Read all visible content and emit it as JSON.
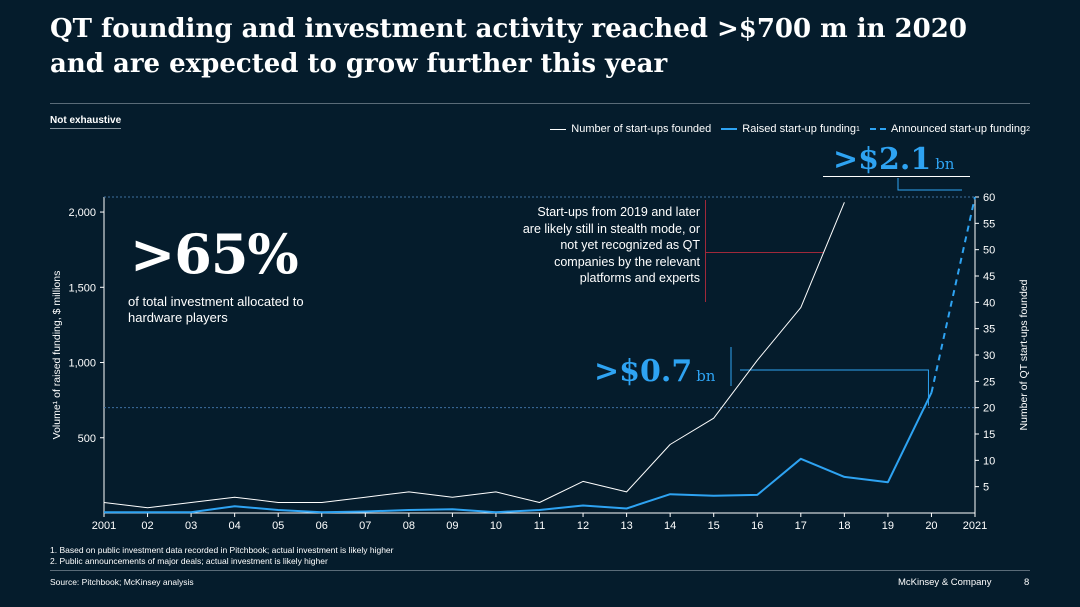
{
  "title": "QT founding and investment activity reached >$700 m in 2020 and are expected to grow further this year",
  "subtag": "Not exhaustive",
  "legend": {
    "founded": "Number of start-ups founded",
    "raised": "Raised start-up funding",
    "raised_sup": "1",
    "announced": "Announced start-up funding",
    "announced_sup": "2"
  },
  "callout": {
    "big": ">65%",
    "text": "of total investment allocated to hardware players"
  },
  "note": "Start-ups from 2019 and later are likely still in stealth mode, or not yet recognized as QT companies by the relevant platforms and experts",
  "annotations": {
    "a2020_value": ">$0.7",
    "a2020_unit": "bn",
    "a2021_value": ">$2.1",
    "a2021_unit": "bn"
  },
  "axes": {
    "left_title": "Volume¹ of raised funding, $ millions",
    "right_title": "Number of QT start-ups founded"
  },
  "footnotes": [
    "1. Based on public investment data recorded in Pitchbook; actual investment is likely higher",
    "2. Public announcements of major deals; actual investment is likely higher"
  ],
  "source": "Source: Pitchbook; McKinsey analysis",
  "brand": "McKinsey & Company",
  "page_number": "8",
  "colors": {
    "background": "#051c2c",
    "accent": "#2ea3f2",
    "founded_line": "#ffffff",
    "note_marker": "#a0293a"
  },
  "chart_data": {
    "type": "line",
    "categories": [
      "2001",
      "02",
      "03",
      "04",
      "05",
      "06",
      "07",
      "08",
      "09",
      "10",
      "11",
      "12",
      "13",
      "14",
      "15",
      "16",
      "17",
      "18",
      "19",
      "20",
      "2021"
    ],
    "y_left": {
      "label": "Volume¹ of raised funding, $ millions",
      "ticks": [
        "500",
        "1,000",
        "1,500",
        "2,000"
      ],
      "tick_values": [
        500,
        1000,
        1500,
        2000
      ],
      "range": [
        0,
        2100
      ]
    },
    "y_right": {
      "label": "Number of QT start-ups founded",
      "ticks": [
        "5",
        "10",
        "15",
        "20",
        "25",
        "30",
        "35",
        "40",
        "45",
        "50",
        "55",
        "60"
      ],
      "tick_values": [
        5,
        10,
        15,
        20,
        25,
        30,
        35,
        40,
        45,
        50,
        55,
        60
      ],
      "range": [
        0,
        60
      ]
    },
    "series": [
      {
        "name": "Number of start-ups founded",
        "axis": "right",
        "style": "solid-white",
        "values": [
          2,
          1,
          2,
          3,
          2,
          2,
          3,
          4,
          3,
          4,
          2,
          6,
          4,
          13,
          18,
          29,
          39,
          59,
          null,
          null,
          null
        ]
      },
      {
        "name": "Raised start-up funding",
        "axis": "left",
        "style": "solid-blue",
        "values": [
          5,
          5,
          5,
          45,
          20,
          5,
          10,
          20,
          25,
          5,
          20,
          50,
          30,
          125,
          115,
          120,
          360,
          240,
          205,
          800,
          null
        ]
      },
      {
        "name": "Announced start-up funding",
        "axis": "left",
        "style": "dashed-blue",
        "values": [
          null,
          null,
          null,
          null,
          null,
          null,
          null,
          null,
          null,
          null,
          null,
          null,
          null,
          null,
          null,
          null,
          null,
          null,
          null,
          800,
          2100
        ]
      }
    ],
    "reference_lines": [
      {
        "axis": "left",
        "value": 700,
        "label": ">$0.7 bn",
        "style": "dashed"
      },
      {
        "axis": "left",
        "value": 2100,
        "label": ">$2.1 bn",
        "style": "dashed"
      }
    ]
  }
}
